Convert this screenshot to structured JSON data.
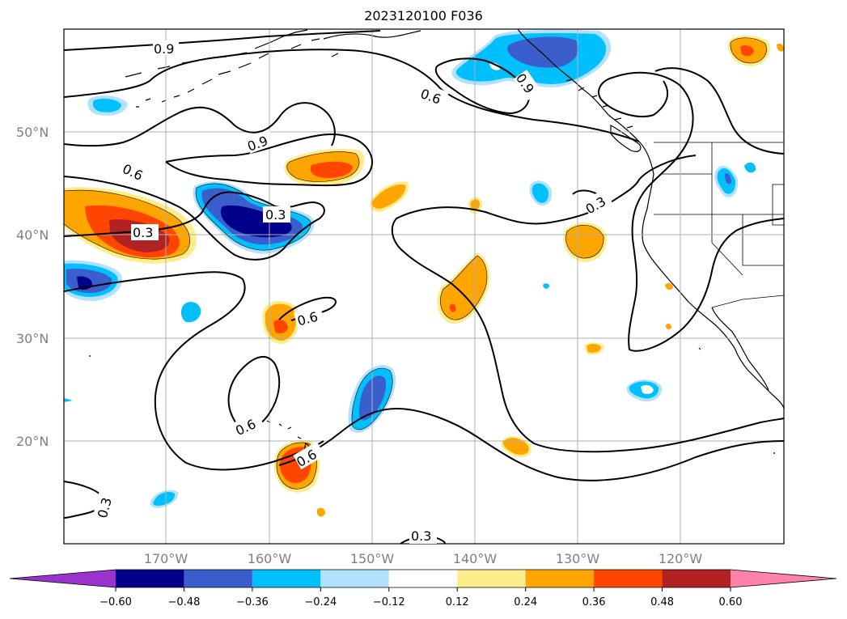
{
  "title": "2023120100 F036",
  "latitude_labels": [
    "50°N",
    "40°N",
    "30°N",
    "20°N"
  ],
  "longitude_labels": [
    "170°W",
    "160°W",
    "150°W",
    "140°W",
    "130°W",
    "120°W"
  ],
  "contour_labels": [
    "0.9",
    "0.6",
    "0.9",
    "0.6",
    "0.3",
    "0.3",
    "0.6",
    "0.3",
    "0.9",
    "0.6",
    "0.6",
    "0.3",
    "0.3"
  ],
  "colorbar": {
    "tick_labels": [
      "−0.60",
      "−0.48",
      "−0.36",
      "−0.24",
      "−0.12",
      "0.12",
      "0.24",
      "0.36",
      "0.48",
      "0.60"
    ],
    "colors": [
      "#9a32cd",
      "#00008b",
      "#3a5fcd",
      "#00bfff",
      "#b0e2ff",
      "#ffffff",
      "#ffec8b",
      "#ffa500",
      "#ff4500",
      "#b22222",
      "#ff82ab"
    ]
  }
}
